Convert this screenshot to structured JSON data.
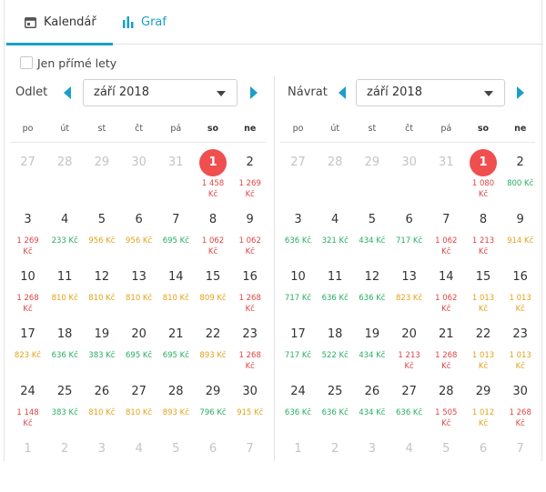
{
  "tabs": [
    {
      "label": "Kalendář",
      "icon": "calendar-icon",
      "active": true
    },
    {
      "label": "Graf",
      "icon": "bar-chart-icon",
      "active": false
    }
  ],
  "direct_flights": {
    "label": "Jen přímé lety",
    "checked": false
  },
  "colors": {
    "accent": "#1a9fc9",
    "selected": "#ef4f4f",
    "cheap": "#27ae60",
    "medium": "#e3a21a",
    "expensive": "#e04343"
  },
  "weekdays": [
    "po",
    "út",
    "st",
    "čt",
    "pá",
    "so",
    "ne"
  ],
  "departure": {
    "label": "Odlet",
    "month": "září 2018",
    "days": [
      {
        "d": "27",
        "muted": true
      },
      {
        "d": "28",
        "muted": true
      },
      {
        "d": "29",
        "muted": true
      },
      {
        "d": "30",
        "muted": true
      },
      {
        "d": "31",
        "muted": true
      },
      {
        "d": "1",
        "selected": true,
        "price": "1 458 Kč",
        "tone": "red"
      },
      {
        "d": "2",
        "price": "1 269 Kč",
        "tone": "red"
      },
      {
        "d": "3",
        "price": "1 269 Kč",
        "tone": "red"
      },
      {
        "d": "4",
        "price": "233 Kč",
        "tone": "green"
      },
      {
        "d": "5",
        "price": "956 Kč",
        "tone": "orange"
      },
      {
        "d": "6",
        "price": "956 Kč",
        "tone": "orange"
      },
      {
        "d": "7",
        "price": "695 Kč",
        "tone": "green"
      },
      {
        "d": "8",
        "price": "1 062 Kč",
        "tone": "red"
      },
      {
        "d": "9",
        "price": "1 062 Kč",
        "tone": "red"
      },
      {
        "d": "10",
        "price": "1 268 Kč",
        "tone": "red"
      },
      {
        "d": "11",
        "price": "810 Kč",
        "tone": "orange"
      },
      {
        "d": "12",
        "price": "810 Kč",
        "tone": "orange"
      },
      {
        "d": "13",
        "price": "810 Kč",
        "tone": "orange"
      },
      {
        "d": "14",
        "price": "810 Kč",
        "tone": "orange"
      },
      {
        "d": "15",
        "price": "809 Kč",
        "tone": "orange"
      },
      {
        "d": "16",
        "price": "1 268 Kč",
        "tone": "red"
      },
      {
        "d": "17",
        "price": "823 Kč",
        "tone": "orange"
      },
      {
        "d": "18",
        "price": "636 Kč",
        "tone": "green"
      },
      {
        "d": "19",
        "price": "383 Kč",
        "tone": "green"
      },
      {
        "d": "20",
        "price": "695 Kč",
        "tone": "green"
      },
      {
        "d": "21",
        "price": "695 Kč",
        "tone": "green"
      },
      {
        "d": "22",
        "price": "893 Kč",
        "tone": "orange"
      },
      {
        "d": "23",
        "price": "1 268 Kč",
        "tone": "red"
      },
      {
        "d": "24",
        "price": "1 148 Kč",
        "tone": "red"
      },
      {
        "d": "25",
        "price": "383 Kč",
        "tone": "green"
      },
      {
        "d": "26",
        "price": "810 Kč",
        "tone": "orange"
      },
      {
        "d": "27",
        "price": "810 Kč",
        "tone": "orange"
      },
      {
        "d": "28",
        "price": "893 Kč",
        "tone": "orange"
      },
      {
        "d": "29",
        "price": "796 Kč",
        "tone": "green"
      },
      {
        "d": "30",
        "price": "915 Kč",
        "tone": "orange"
      },
      {
        "d": "1",
        "muted": true
      },
      {
        "d": "2",
        "muted": true
      },
      {
        "d": "3",
        "muted": true
      },
      {
        "d": "4",
        "muted": true
      },
      {
        "d": "5",
        "muted": true
      },
      {
        "d": "6",
        "muted": true
      },
      {
        "d": "7",
        "muted": true
      }
    ]
  },
  "return": {
    "label": "Návrat",
    "month": "září 2018",
    "days": [
      {
        "d": "27",
        "muted": true
      },
      {
        "d": "28",
        "muted": true
      },
      {
        "d": "29",
        "muted": true
      },
      {
        "d": "30",
        "muted": true
      },
      {
        "d": "31",
        "muted": true
      },
      {
        "d": "1",
        "selected": true,
        "price": "1 080 Kč",
        "tone": "red"
      },
      {
        "d": "2",
        "price": "800 Kč",
        "tone": "green"
      },
      {
        "d": "3",
        "price": "636 Kč",
        "tone": "green"
      },
      {
        "d": "4",
        "price": "321 Kč",
        "tone": "green"
      },
      {
        "d": "5",
        "price": "434 Kč",
        "tone": "green"
      },
      {
        "d": "6",
        "price": "717 Kč",
        "tone": "green"
      },
      {
        "d": "7",
        "price": "1 062 Kč",
        "tone": "red"
      },
      {
        "d": "8",
        "price": "1 213 Kč",
        "tone": "red"
      },
      {
        "d": "9",
        "price": "914 Kč",
        "tone": "orange"
      },
      {
        "d": "10",
        "price": "717 Kč",
        "tone": "green"
      },
      {
        "d": "11",
        "price": "636 Kč",
        "tone": "green"
      },
      {
        "d": "12",
        "price": "636 Kč",
        "tone": "green"
      },
      {
        "d": "13",
        "price": "823 Kč",
        "tone": "orange"
      },
      {
        "d": "14",
        "price": "1 062 Kč",
        "tone": "red"
      },
      {
        "d": "15",
        "price": "1 013 Kč",
        "tone": "orange"
      },
      {
        "d": "16",
        "price": "1 013 Kč",
        "tone": "orange"
      },
      {
        "d": "17",
        "price": "717 Kč",
        "tone": "green"
      },
      {
        "d": "18",
        "price": "522 Kč",
        "tone": "green"
      },
      {
        "d": "19",
        "price": "434 Kč",
        "tone": "green"
      },
      {
        "d": "20",
        "price": "1 213 Kč",
        "tone": "red"
      },
      {
        "d": "21",
        "price": "1 268 Kč",
        "tone": "red"
      },
      {
        "d": "22",
        "price": "1 013 Kč",
        "tone": "orange"
      },
      {
        "d": "23",
        "price": "1 013 Kč",
        "tone": "orange"
      },
      {
        "d": "24",
        "price": "636 Kč",
        "tone": "green"
      },
      {
        "d": "25",
        "price": "636 Kč",
        "tone": "green"
      },
      {
        "d": "26",
        "price": "434 Kč",
        "tone": "green"
      },
      {
        "d": "27",
        "price": "636 Kč",
        "tone": "green"
      },
      {
        "d": "28",
        "price": "1 505 Kč",
        "tone": "red"
      },
      {
        "d": "29",
        "price": "1 012 Kč",
        "tone": "orange"
      },
      {
        "d": "30",
        "price": "1 268 Kč",
        "tone": "red"
      },
      {
        "d": "1",
        "muted": true
      },
      {
        "d": "2",
        "muted": true
      },
      {
        "d": "3",
        "muted": true
      },
      {
        "d": "4",
        "muted": true
      },
      {
        "d": "5",
        "muted": true
      },
      {
        "d": "6",
        "muted": true
      },
      {
        "d": "7",
        "muted": true
      }
    ]
  }
}
